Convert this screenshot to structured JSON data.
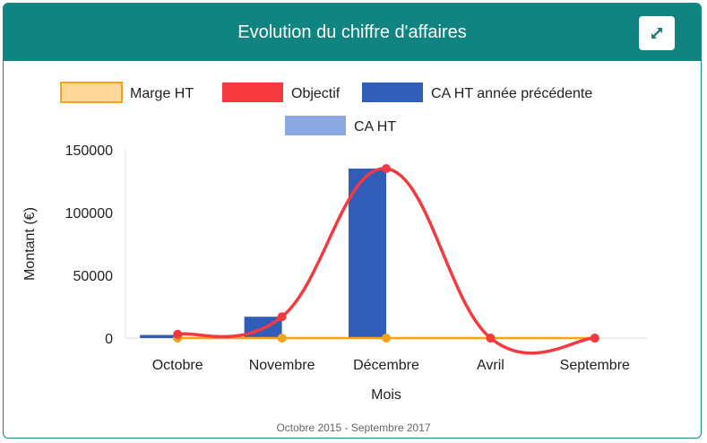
{
  "header": {
    "title": "Evolution du chiffre d'affaires",
    "expand_icon": "expand-arrows-icon",
    "background": "#0f8480"
  },
  "chart_data": {
    "type": "bar",
    "title": "",
    "xlabel": "Mois",
    "ylabel": "Montant (€)",
    "ylim": [
      0,
      150000
    ],
    "yticks": [
      0,
      50000,
      100000,
      150000
    ],
    "categories": [
      "Octobre",
      "Novembre",
      "Décembre",
      "Avril",
      "Septembre"
    ],
    "legend_position": "top",
    "series": [
      {
        "name": "Marge HT",
        "kind": "line",
        "color": "#f7a21b",
        "fill": "#ffd79a",
        "values": [
          0,
          0,
          0,
          0,
          0
        ]
      },
      {
        "name": "Objectif",
        "kind": "line",
        "color": "#f43a3f",
        "values": [
          3000,
          17000,
          135000,
          0,
          0
        ]
      },
      {
        "name": "CA HT année précédente",
        "kind": "bar",
        "color": "#2f5db8",
        "values": [
          2500,
          17000,
          135000,
          0,
          0
        ]
      },
      {
        "name": "CA HT",
        "kind": "bar",
        "color": "#8aa7e2",
        "values": [
          0,
          0,
          0,
          0,
          0
        ]
      }
    ]
  },
  "footer": {
    "period": "Octobre 2015 - Septembre 2017"
  }
}
